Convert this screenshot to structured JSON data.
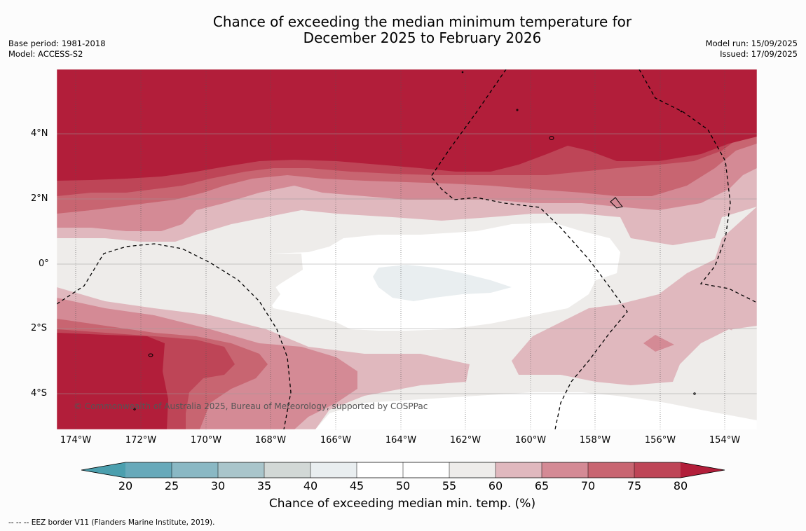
{
  "title": {
    "line1": "Chance of exceeding the median minimum temperature for",
    "line2": "December 2025 to February 2026"
  },
  "meta_left": {
    "base_period": "Base period: 1981-2018",
    "model": "Model: ACCESS-S2"
  },
  "meta_right": {
    "model_run": "Model run: 15/09/2025",
    "issued": "Issued: 17/09/2025"
  },
  "map": {
    "lat_labels": [
      "4°N",
      "2°N",
      "0°",
      "2°S",
      "4°S"
    ],
    "lon_labels": [
      "174°W",
      "172°W",
      "170°W",
      "168°W",
      "166°W",
      "164°W",
      "162°W",
      "160°W",
      "158°W",
      "156°W",
      "154°W"
    ],
    "copyright": "© Commonwealth of Australia 2025, Bureau of Meteorology, supported by COSPPac",
    "colors": {
      "c20": "#67a9ba",
      "c25": "#8ab8c4",
      "c30": "#a9c5cb",
      "c35": "#d2d8d6",
      "c40": "#e9eef0",
      "c45": "#ffffff",
      "c50": "#ffffff",
      "c55": "#eeecea",
      "c60": "#e0b8be",
      "c65": "#d48a95",
      "c70": "#c86571",
      "c75": "#be4557",
      "c80": "#b21e3a",
      "low_arrow": "#4b9fae"
    }
  },
  "colorbar": {
    "ticks": [
      "20",
      "25",
      "30",
      "35",
      "40",
      "45",
      "50",
      "55",
      "60",
      "65",
      "70",
      "75",
      "80"
    ],
    "label": "Chance of exceeding median min. temp. (%)"
  },
  "footer": "--  --  -- EEZ border V11 (Flanders Marine Institute, 2019)."
}
